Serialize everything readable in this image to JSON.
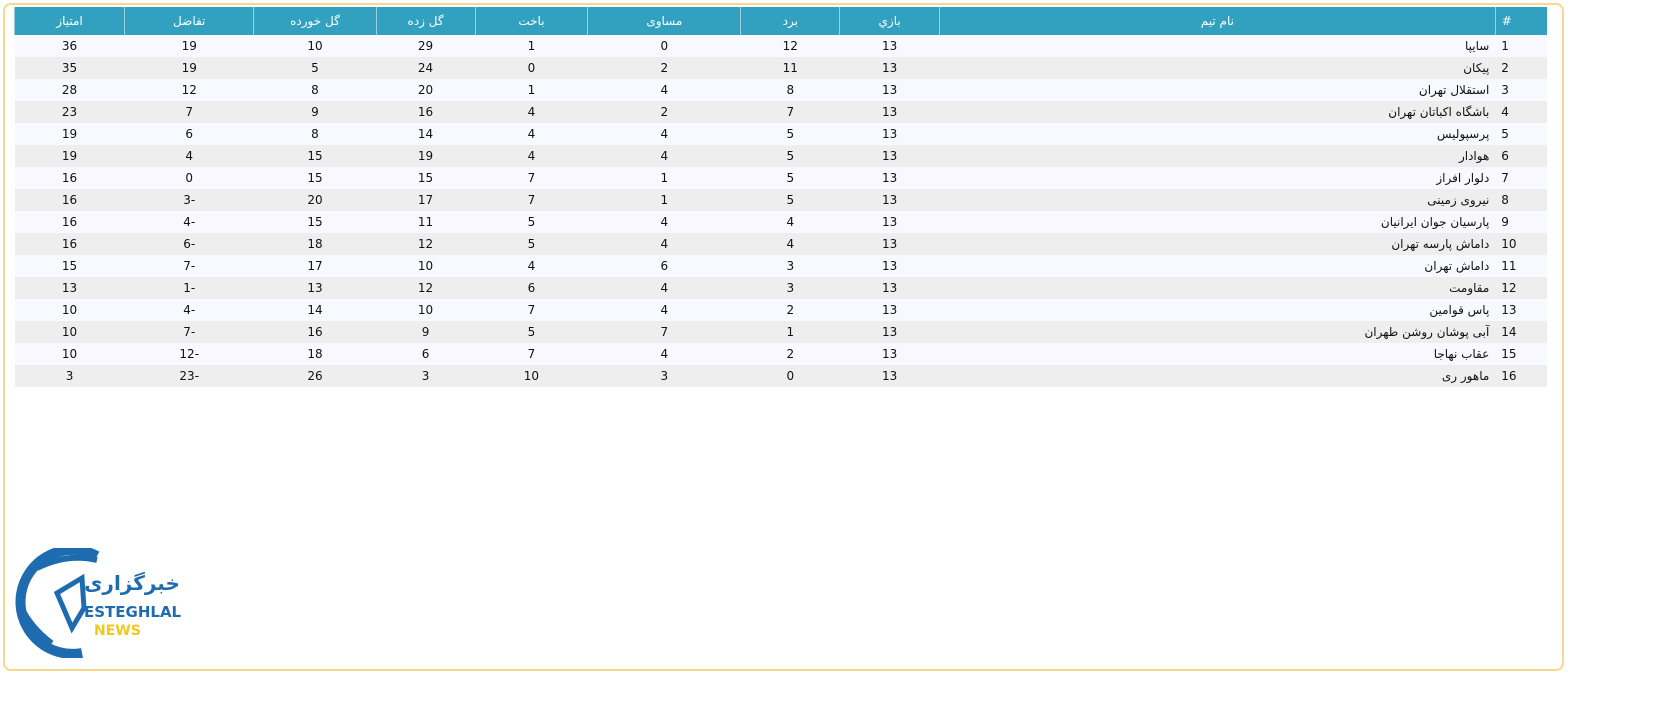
{
  "table": {
    "headers": [
      "#",
      "نام تیم",
      "بازي",
      "برد",
      "مساوی",
      "باخت",
      "گل زده",
      "گل خورده",
      "تفاضل",
      "امتیاز"
    ],
    "rows": [
      [
        "1",
        "سایپا",
        "13",
        "12",
        "0",
        "1",
        "29",
        "10",
        "19",
        "36"
      ],
      [
        "2",
        "پیکان",
        "13",
        "11",
        "2",
        "0",
        "24",
        "5",
        "19",
        "35"
      ],
      [
        "3",
        "استقلال تهران",
        "13",
        "8",
        "4",
        "1",
        "20",
        "8",
        "12",
        "28"
      ],
      [
        "4",
        "باشگاه اکباتان تهران",
        "13",
        "7",
        "2",
        "4",
        "16",
        "9",
        "7",
        "23"
      ],
      [
        "5",
        "پرسپولیس",
        "13",
        "5",
        "4",
        "4",
        "14",
        "8",
        "6",
        "19"
      ],
      [
        "6",
        "هوادار",
        "13",
        "5",
        "4",
        "4",
        "19",
        "15",
        "4",
        "19"
      ],
      [
        "7",
        "دلوار افراز",
        "13",
        "5",
        "1",
        "7",
        "15",
        "15",
        "0",
        "16"
      ],
      [
        "8",
        "نیروی زمینی",
        "13",
        "5",
        "1",
        "7",
        "17",
        "20",
        "-3",
        "16"
      ],
      [
        "9",
        "پارسیان جوان ایرانیان",
        "13",
        "4",
        "4",
        "5",
        "11",
        "15",
        "-4",
        "16"
      ],
      [
        "10",
        "داماش پارسه تهران",
        "13",
        "4",
        "4",
        "5",
        "12",
        "18",
        "-6",
        "16"
      ],
      [
        "11",
        "داماش تهران",
        "13",
        "3",
        "6",
        "4",
        "10",
        "17",
        "-7",
        "15"
      ],
      [
        "12",
        "مقاومت",
        "13",
        "3",
        "4",
        "6",
        "12",
        "13",
        "-1",
        "13"
      ],
      [
        "13",
        "پاس قوامین",
        "13",
        "2",
        "4",
        "7",
        "10",
        "14",
        "-4",
        "10"
      ],
      [
        "14",
        "آبی پوشان روشن طهران",
        "13",
        "1",
        "7",
        "5",
        "9",
        "16",
        "-7",
        "10"
      ],
      [
        "15",
        "عقاب نهاجا",
        "13",
        "2",
        "4",
        "7",
        "6",
        "18",
        "-12",
        "10"
      ],
      [
        "16",
        "ماهور ری",
        "13",
        "0",
        "3",
        "10",
        "3",
        "26",
        "-23",
        "3"
      ]
    ]
  },
  "logo": {
    "persian": "خبرگزاری",
    "line1": "ESTEGHLAL",
    "line2": "NEWS"
  },
  "colors": {
    "header": "#32a0bf",
    "logo_blue": "#1f6bb0",
    "logo_yellow": "#f2c81b",
    "border": "#f7d88f"
  }
}
